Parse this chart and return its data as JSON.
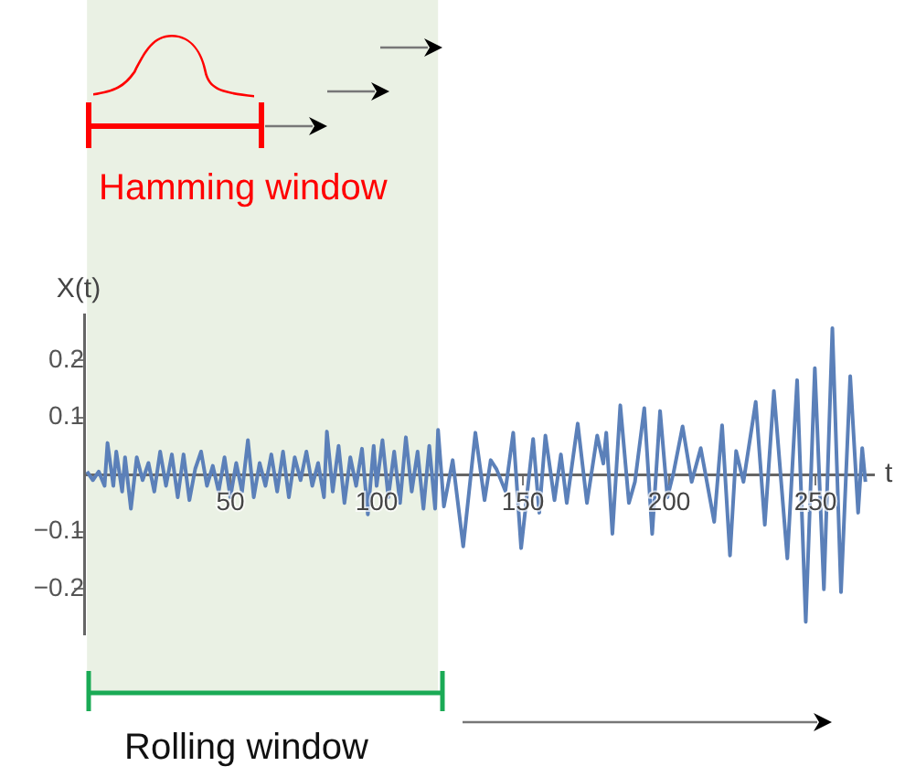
{
  "chart_data": {
    "type": "line",
    "xlabel": "t",
    "ylabel": "X(t)",
    "xlim": [
      0,
      270
    ],
    "ylim": [
      -0.28,
      0.28
    ],
    "xticks": [
      50,
      100,
      150,
      200,
      250
    ],
    "yticks": [
      {
        "value": -0.2,
        "label": "−0.2"
      },
      {
        "value": -0.1,
        "label": "−0.1"
      },
      0.1,
      0.2
    ],
    "grid": false,
    "legend": false,
    "marker": "none",
    "line_style": "solid",
    "bands": [
      {
        "axis": "x",
        "from": 1,
        "to": 121,
        "color": "#eaf1e4"
      }
    ],
    "annotations": [
      "Hamming window",
      "Rolling window"
    ],
    "series": [
      {
        "color": "#5b80b9",
        "x": [
          1,
          3,
          5,
          7,
          8,
          10,
          11,
          13,
          14,
          16,
          18,
          20,
          22,
          24,
          26,
          28,
          30,
          32,
          34,
          36,
          38,
          40,
          42,
          44,
          46,
          48,
          50,
          52,
          54,
          56,
          58,
          60,
          62,
          64,
          66,
          68,
          70,
          72,
          74,
          76,
          78,
          80,
          82,
          83,
          85,
          87,
          89,
          91,
          93,
          95,
          97,
          99,
          100,
          102,
          104,
          106,
          108,
          110,
          112,
          114,
          116,
          118,
          120,
          121,
          123,
          126,
          129.6,
          133.75,
          136.9,
          139,
          141,
          144,
          146.7,
          149.4,
          153.5,
          155.6,
          157.7,
          160.8,
          163,
          165,
          168.75,
          171.9,
          175.4,
          177.5,
          178.5,
          180.6,
          183.3,
          186.25,
          188.3,
          191.5,
          194.2,
          196.9,
          199.4,
          201.5,
          204.6,
          207.7,
          210.8,
          215.4,
          218.1,
          220.8,
          222.9,
          225.4,
          229.6,
          232.7,
          235.8,
          240.4,
          243.75,
          246.7,
          249.8,
          252.9,
          255.8,
          258.75,
          261.9,
          264.6,
          266,
          267.1
        ],
        "values": [
          0.005,
          -0.01,
          0.005,
          -0.02,
          0.055,
          -0.02,
          0.04,
          -0.03,
          0.03,
          -0.06,
          0.03,
          -0.01,
          0.02,
          -0.03,
          0.04,
          -0.02,
          0.035,
          -0.04,
          0.035,
          -0.045,
          0.01,
          0.04,
          -0.02,
          0.015,
          -0.03,
          0.03,
          -0.04,
          0.02,
          -0.03,
          0.06,
          -0.04,
          0.02,
          -0.02,
          0.035,
          -0.03,
          0.04,
          -0.04,
          0.03,
          -0.01,
          0.04,
          -0.02,
          0.02,
          -0.04,
          0.075,
          -0.03,
          0.05,
          -0.05,
          0.03,
          -0.02,
          0.045,
          -0.07,
          0.05,
          -0.02,
          0.06,
          -0.04,
          0.04,
          -0.05,
          0.065,
          -0.03,
          0.04,
          -0.06,
          0.05,
          -0.06,
          0.078,
          -0.056,
          0.025,
          -0.126,
          0.073,
          -0.045,
          0.025,
          0.009,
          -0.029,
          0.073,
          -0.129,
          0.062,
          -0.067,
          0.068,
          -0.045,
          0.035,
          -0.05,
          0.089,
          -0.05,
          0.068,
          0.019,
          0.073,
          -0.104,
          0.121,
          -0.05,
          -0.013,
          0.116,
          -0.104,
          0.111,
          -0.04,
          0.003,
          0.084,
          -0.013,
          0.046,
          -0.083,
          0.086,
          -0.142,
          0.041,
          -0.013,
          0.127,
          -0.088,
          0.146,
          -0.147,
          0.165,
          -0.258,
          0.186,
          -0.201,
          0.256,
          -0.206,
          0.172,
          -0.067,
          0.046,
          -0.013
        ]
      }
    ]
  }
}
